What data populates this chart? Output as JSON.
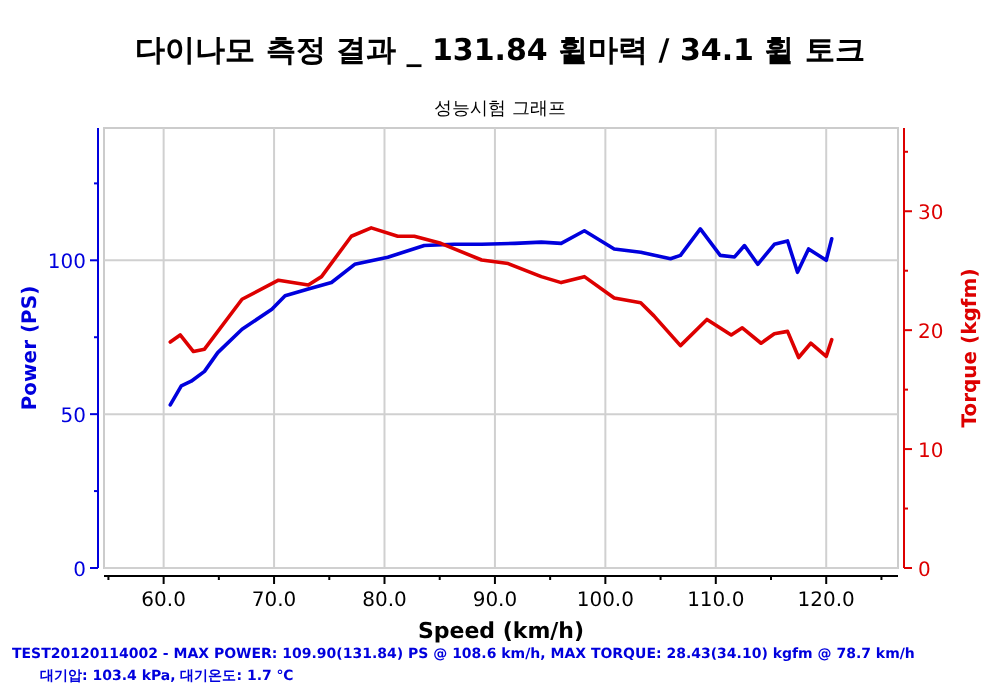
{
  "chart_data": {
    "type": "line",
    "title": "다이나모 측정 결과 _ 131.84 휠마력 / 34.1 휠 토크",
    "subtitle": "성능시험 그래프",
    "xlabel": "Speed (km/h)",
    "ylabel": "Power (PS)",
    "y2label": "Torque (kgfm)",
    "xlim": [
      54.6,
      126.5
    ],
    "xticks": [
      {
        "value": 55,
        "label": null
      },
      {
        "value": 60,
        "label": "60.0"
      },
      {
        "value": 65,
        "label": null
      },
      {
        "value": 70,
        "label": "70.0"
      },
      {
        "value": 75,
        "label": null
      },
      {
        "value": 80,
        "label": "80.0"
      },
      {
        "value": 85,
        "label": null
      },
      {
        "value": 90,
        "label": "90.0"
      },
      {
        "value": 95,
        "label": null
      },
      {
        "value": 100,
        "label": "100.0"
      },
      {
        "value": 105,
        "label": null
      },
      {
        "value": 110,
        "label": "110.0"
      },
      {
        "value": 115,
        "label": null
      },
      {
        "value": 120,
        "label": "120.0"
      },
      {
        "value": 125,
        "label": null
      }
    ],
    "ylim": [
      0,
      143
    ],
    "yticks": [
      0,
      {
        "value": 25,
        "label": null
      },
      50,
      {
        "value": 75,
        "label": null
      },
      100,
      {
        "value": 125,
        "label": null
      }
    ],
    "y2lim": [
      0,
      37
    ],
    "y2ticks": [
      0,
      {
        "value": 5,
        "label": null
      },
      10,
      {
        "value": 15,
        "label": null
      },
      20,
      {
        "value": 25,
        "label": null
      },
      30,
      {
        "value": 35,
        "label": null
      }
    ],
    "grid": true,
    "series": [
      {
        "color": "#0000dd",
        "x": [
          60.6,
          61.6,
          62.5,
          63.7,
          64.9,
          67.1,
          69.8,
          71.0,
          73.1,
          75.2,
          77.3,
          80.3,
          83.6,
          86.3,
          88.8,
          91.8,
          94.2,
          96.0,
          98.1,
          100.8,
          103.2,
          105.9,
          106.8,
          108.6,
          110.4,
          111.7,
          112.6,
          113.8,
          115.3,
          116.5,
          117.4,
          118.4,
          120.0,
          120.5
        ],
        "values": [
          53.0,
          59.2,
          60.7,
          63.9,
          70.0,
          77.6,
          84.1,
          88.5,
          90.7,
          92.8,
          98.7,
          101.0,
          104.8,
          105.2,
          105.2,
          105.5,
          105.9,
          105.5,
          109.6,
          103.7,
          102.6,
          100.5,
          101.6,
          110.2,
          101.6,
          101.1,
          104.8,
          98.7,
          105.2,
          106.3,
          96.1,
          103.7,
          100.0,
          107.0
        ]
      },
      {
        "color": "#dd0000",
        "axis": "y2",
        "x": [
          60.6,
          61.5,
          62.7,
          63.7,
          67.1,
          70.4,
          73.1,
          74.3,
          77.0,
          78.8,
          81.2,
          82.7,
          85.1,
          88.8,
          91.2,
          94.2,
          96.0,
          98.1,
          100.8,
          103.2,
          104.4,
          106.8,
          109.2,
          111.4,
          112.4,
          114.1,
          115.3,
          116.5,
          117.5,
          118.6,
          120.0,
          120.5
        ],
        "values": [
          19.0,
          19.6,
          18.2,
          18.4,
          22.6,
          24.2,
          23.8,
          24.5,
          27.9,
          28.6,
          27.9,
          27.9,
          27.3,
          25.9,
          25.6,
          24.5,
          24.0,
          24.5,
          22.7,
          22.3,
          21.2,
          18.7,
          20.9,
          19.6,
          20.2,
          18.9,
          19.7,
          19.9,
          17.7,
          18.9,
          17.8,
          19.2
        ]
      }
    ],
    "annotations": [
      "TEST20120114002 - MAX POWER: 109.90(131.84) PS @ 108.6 km/h, MAX TORQUE: 28.43(34.10) kgfm @ 78.7 km/h",
      "대기압: 103.4 kPa, 대기온도:  1.7 ℃"
    ]
  }
}
